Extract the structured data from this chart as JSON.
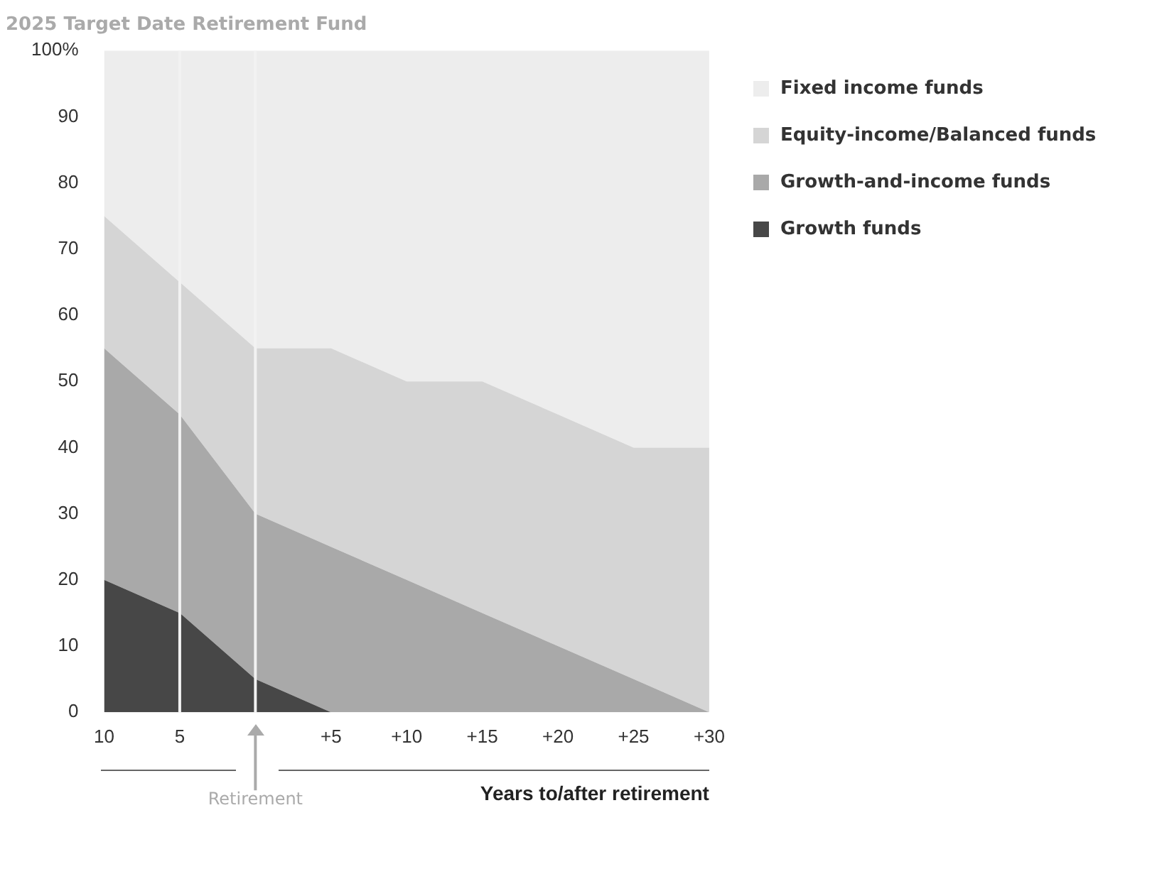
{
  "chart_data": {
    "type": "area",
    "title": "2025 Target Date Retirement Fund",
    "xlabel": "Years to/after retirement",
    "stacked": true,
    "legend": "right",
    "grid": false,
    "x": [
      -10,
      -5,
      0,
      5,
      10,
      15,
      20,
      25,
      30
    ],
    "xlim": [
      -10,
      30
    ],
    "xticks": [
      {
        "value": -10,
        "label": "10"
      },
      {
        "value": -5,
        "label": "5"
      },
      {
        "value": 5,
        "label": "+5"
      },
      {
        "value": 10,
        "label": "+10"
      },
      {
        "value": 15,
        "label": "+15"
      },
      {
        "value": 20,
        "label": "+20"
      },
      {
        "value": 25,
        "label": "+25"
      },
      {
        "value": 30,
        "label": "+30"
      }
    ],
    "ylim": [
      0,
      100
    ],
    "yticks": [
      0,
      10,
      20,
      30,
      40,
      50,
      60,
      70,
      80,
      90,
      {
        "value": 100,
        "label": "100%"
      }
    ],
    "ref_lines": [
      {
        "axis": "x",
        "value": -5,
        "color": "#f2f2f2"
      },
      {
        "axis": "x",
        "value": 0,
        "color": "#f2f2f2"
      }
    ],
    "annotations": [
      "Retirement"
    ],
    "series": [
      {
        "name": "Growth funds",
        "color": "#474747",
        "values": [
          20,
          15,
          5,
          0,
          0,
          0,
          0,
          0,
          0
        ]
      },
      {
        "name": "Growth-and-income funds",
        "color": "#a9a9a9",
        "values": [
          35,
          30,
          25,
          25,
          20,
          15,
          10,
          5,
          0
        ]
      },
      {
        "name": "Equity-income/Balanced funds",
        "color": "#d5d5d5",
        "values": [
          20,
          20,
          25,
          30,
          30,
          35,
          35,
          35,
          40
        ]
      },
      {
        "name": "Fixed income funds",
        "color": "#ededed",
        "values": [
          25,
          35,
          45,
          45,
          50,
          50,
          55,
          60,
          60
        ]
      }
    ]
  }
}
